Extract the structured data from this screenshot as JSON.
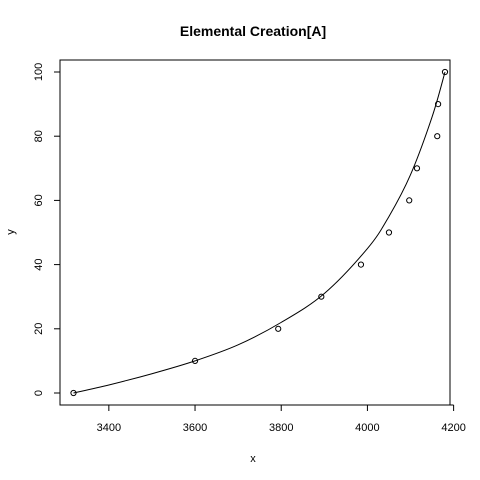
{
  "chart_data": {
    "type": "scatter",
    "title": "Elemental Creation[A]",
    "xlabel": "x",
    "ylabel": "y",
    "xlim": [
      3300,
      4200
    ],
    "ylim": [
      0,
      100
    ],
    "xticks": [
      3400,
      3600,
      3800,
      4000,
      4200
    ],
    "yticks": [
      0,
      20,
      40,
      60,
      80,
      100
    ],
    "grid": false,
    "points": [
      {
        "x": 3318,
        "y": 0
      },
      {
        "x": 3600,
        "y": 10
      },
      {
        "x": 3793,
        "y": 20
      },
      {
        "x": 3893,
        "y": 30
      },
      {
        "x": 3985,
        "y": 40
      },
      {
        "x": 4050,
        "y": 50
      },
      {
        "x": 4097,
        "y": 60
      },
      {
        "x": 4115,
        "y": 70
      },
      {
        "x": 4162,
        "y": 80
      },
      {
        "x": 4164,
        "y": 90
      },
      {
        "x": 4180,
        "y": 100
      }
    ],
    "fit_curve": [
      {
        "x": 3318,
        "y": 0
      },
      {
        "x": 3400,
        "y": 2.5
      },
      {
        "x": 3500,
        "y": 6
      },
      {
        "x": 3600,
        "y": 10
      },
      {
        "x": 3700,
        "y": 15
      },
      {
        "x": 3800,
        "y": 22
      },
      {
        "x": 3900,
        "y": 31
      },
      {
        "x": 4000,
        "y": 45
      },
      {
        "x": 4050,
        "y": 55
      },
      {
        "x": 4100,
        "y": 68
      },
      {
        "x": 4150,
        "y": 86
      },
      {
        "x": 4180,
        "y": 100
      }
    ]
  }
}
